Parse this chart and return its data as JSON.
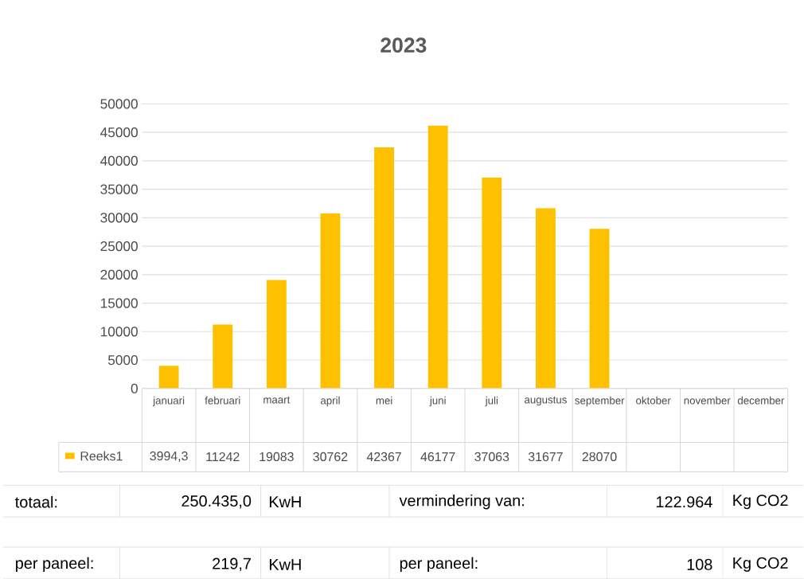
{
  "chart_data": {
    "type": "bar",
    "title": "2023",
    "categories": [
      "januari",
      "februari",
      "maart",
      "april",
      "mei",
      "juni",
      "juli",
      "augustus",
      "september",
      "oktober",
      "november",
      "december"
    ],
    "series": [
      {
        "name": "Reeks1",
        "color": "#ffc000",
        "values": [
          3994.3,
          11242,
          19083,
          30762,
          42367,
          46177,
          37063,
          31677,
          28070,
          null,
          null,
          null
        ],
        "value_labels": [
          "3994,3",
          "11242",
          "19083",
          "30762",
          "42367",
          "46177",
          "37063",
          "31677",
          "28070",
          null,
          null,
          null
        ]
      }
    ],
    "ylim": [
      0,
      50000
    ],
    "yticks": [
      0,
      5000,
      10000,
      15000,
      20000,
      25000,
      30000,
      35000,
      40000,
      45000,
      50000
    ],
    "grid": "y",
    "legend": "bottom",
    "annotations": [
      "totaal:",
      "250.435,0",
      "KwH",
      "vermindering van:",
      "122.964",
      "Kg CO2",
      "per paneel:",
      "219,7",
      "KwH",
      "per paneel:",
      "108",
      "Kg CO2"
    ]
  }
}
